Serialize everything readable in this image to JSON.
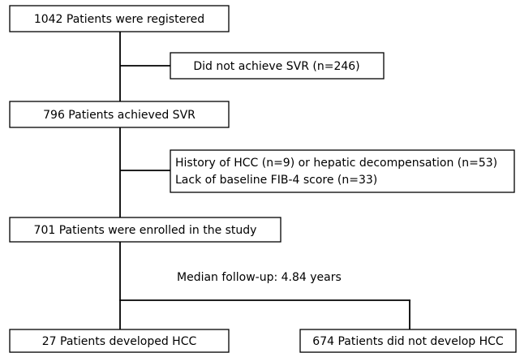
{
  "nodes": [
    {
      "label": "1042 Patients were registered"
    },
    {
      "label": "Did not achieve SVR (n=246)"
    },
    {
      "label": "796 Patients achieved SVR"
    },
    {
      "lines": [
        "History of HCC (n=9) or hepatic decompensation (n=53)",
        "Lack of baseline FIB-4 score (n=33)"
      ]
    },
    {
      "label": "701 Patients were enrolled in the study"
    },
    {
      "label": "27 Patients developed HCC"
    },
    {
      "label": "674 Patients did not develop HCC"
    }
  ],
  "annotation": "Median follow-up: 4.84 years"
}
